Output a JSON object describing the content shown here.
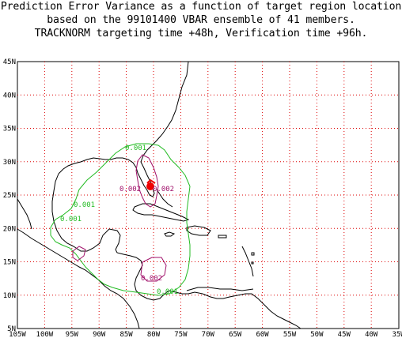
{
  "title": {
    "line1": "Prediction Error Variance as a function of target region location",
    "line2": "based on the 99101400 VBAR ensemble of 41 members.",
    "line3": "TRACKNORM targeting time +48h, Verification time +96h."
  },
  "axes": {
    "x_ticks": [
      "105W",
      "100W",
      "95W",
      "90W",
      "85W",
      "80W",
      "75W",
      "70W",
      "65W",
      "60W",
      "55W",
      "50W",
      "45W",
      "40W",
      "35W"
    ],
    "y_ticks": [
      "45N",
      "40N",
      "35N",
      "30N",
      "25N",
      "20N",
      "15N",
      "10N",
      "5N"
    ]
  },
  "contour_labels": [
    {
      "text": "0.001",
      "color": "#22bb22"
    },
    {
      "text": "0.001",
      "color": "#22bb22"
    },
    {
      "text": "0.001",
      "color": "#22bb22"
    },
    {
      "text": "0.001",
      "color": "#22bb22"
    },
    {
      "text": "0.002",
      "color": "#a0106a"
    },
    {
      "text": "0.002",
      "color": "#a0106a"
    },
    {
      "text": "0.002",
      "color": "#a0106a"
    }
  ],
  "colors": {
    "grid": "#dd0000",
    "coast": "#000000",
    "contour_low": "#22bb22",
    "contour_high": "#a0106a",
    "maximum": "#ee0000"
  }
}
